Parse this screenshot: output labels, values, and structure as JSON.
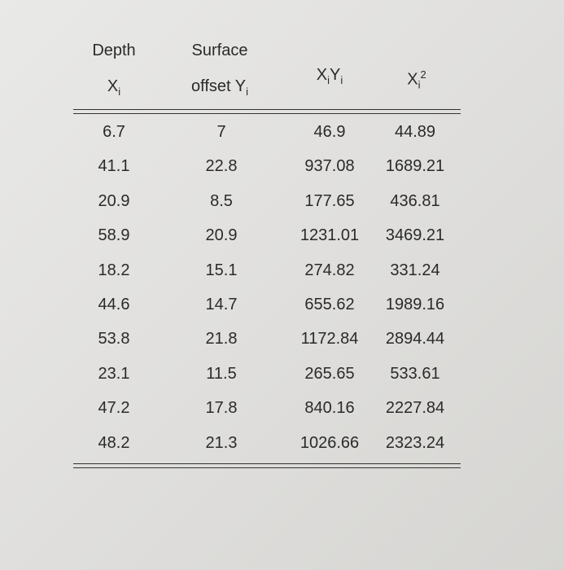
{
  "header": [
    {
      "top": "Depth",
      "base": "X",
      "sub": "i"
    },
    {
      "top": "Surface",
      "base": "offset Y",
      "sub": "i"
    },
    {
      "base1": "X",
      "sub1": "i",
      "base2": "Y",
      "sub2": "i"
    },
    {
      "base": "X",
      "sub": "i",
      "sup": "2"
    }
  ],
  "table": {
    "rows": [
      [
        6.7,
        7,
        46.9,
        44.89
      ],
      [
        41.1,
        22.8,
        937.08,
        1689.21
      ],
      [
        20.9,
        8.5,
        177.65,
        436.81
      ],
      [
        58.9,
        20.9,
        1231.01,
        3469.21
      ],
      [
        18.2,
        15.1,
        274.82,
        331.24
      ],
      [
        44.6,
        14.7,
        655.62,
        1989.16
      ],
      [
        53.8,
        21.8,
        1172.84,
        2894.44
      ],
      [
        23.1,
        11.5,
        265.65,
        533.61
      ],
      [
        47.2,
        17.8,
        840.16,
        2227.84
      ],
      [
        48.2,
        21.3,
        1026.66,
        2323.24
      ]
    ]
  }
}
